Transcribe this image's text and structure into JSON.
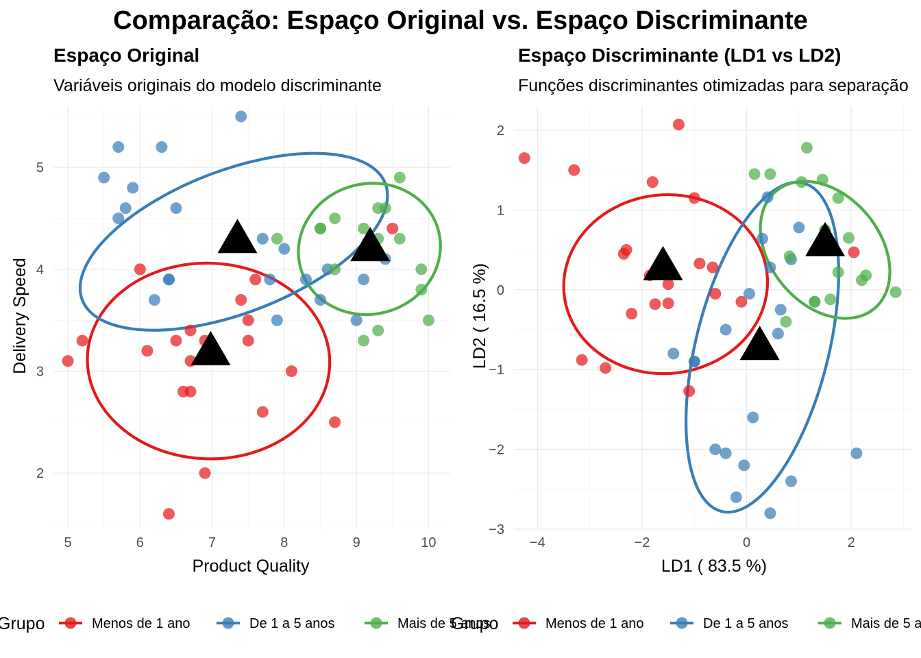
{
  "title": "Comparação: Espaço Original vs. Espaço Discriminante",
  "colors": {
    "Menos de 1 ano": "#E41A1C",
    "De 1 a 5 anos": "#377EB8",
    "Mais de 5 anos": "#4DAF4A",
    "centroid": "#000000"
  },
  "legend": {
    "title": "Grupo",
    "items": [
      "Menos de 1 ano",
      "De 1 a 5 anos",
      "Mais de 5 anos"
    ]
  },
  "chart_data": [
    {
      "type": "scatter",
      "title": "Espaço Original",
      "subtitle": "Variáveis originais do modelo discriminante",
      "xlabel": "Product Quality",
      "ylabel": "Delivery Speed",
      "xlim": [
        4.8,
        10.3
      ],
      "ylim": [
        1.45,
        5.6
      ],
      "xticks": [
        5,
        6,
        7,
        8,
        9,
        10
      ],
      "yticks": [
        2,
        3,
        4,
        5
      ],
      "grid": true,
      "legend_position": "bottom",
      "series": [
        {
          "name": "Menos de 1 ano",
          "points": [
            [
              5.0,
              3.1
            ],
            [
              5.2,
              3.3
            ],
            [
              6.0,
              4.0
            ],
            [
              6.1,
              3.2
            ],
            [
              6.4,
              1.6
            ],
            [
              6.5,
              3.3
            ],
            [
              6.6,
              2.8
            ],
            [
              6.7,
              2.8
            ],
            [
              6.7,
              3.1
            ],
            [
              6.7,
              3.4
            ],
            [
              6.9,
              3.3
            ],
            [
              6.9,
              2.0
            ],
            [
              7.4,
              3.7
            ],
            [
              7.5,
              3.5
            ],
            [
              7.5,
              3.3
            ],
            [
              7.6,
              3.9
            ],
            [
              7.7,
              2.6
            ],
            [
              8.1,
              3.0
            ],
            [
              8.7,
              2.5
            ],
            [
              9.5,
              4.4
            ]
          ],
          "ellipse": {
            "cx": 6.95,
            "cy": 3.1,
            "rx": 1.68,
            "ry": 0.96,
            "angle_deg": 2
          }
        },
        {
          "name": "De 1 a 5 anos",
          "points": [
            [
              5.5,
              4.9
            ],
            [
              5.7,
              5.2
            ],
            [
              5.7,
              4.5
            ],
            [
              5.8,
              4.6
            ],
            [
              5.9,
              4.8
            ],
            [
              6.2,
              3.7
            ],
            [
              6.3,
              5.2
            ],
            [
              6.4,
              3.9
            ],
            [
              6.4,
              3.9
            ],
            [
              6.5,
              4.6
            ],
            [
              7.4,
              5.5
            ],
            [
              7.7,
              4.3
            ],
            [
              7.8,
              3.9
            ],
            [
              7.9,
              3.5
            ],
            [
              8.0,
              4.2
            ],
            [
              8.3,
              3.9
            ],
            [
              8.5,
              3.7
            ],
            [
              8.6,
              4.0
            ],
            [
              9.0,
              3.5
            ],
            [
              9.1,
              3.9
            ],
            [
              9.4,
              4.1
            ]
          ],
          "ellipse": {
            "cx": 7.3,
            "cy": 4.27,
            "rx": 2.25,
            "ry": 0.7,
            "angle_deg": -21
          }
        },
        {
          "name": "Mais de 5 anos",
          "points": [
            [
              7.9,
              4.3
            ],
            [
              8.5,
              4.4
            ],
            [
              8.5,
              4.4
            ],
            [
              8.7,
              4.5
            ],
            [
              8.7,
              4.0
            ],
            [
              9.1,
              4.4
            ],
            [
              9.1,
              3.3
            ],
            [
              9.3,
              3.4
            ],
            [
              9.3,
              4.3
            ],
            [
              9.3,
              4.6
            ],
            [
              9.4,
              4.6
            ],
            [
              9.6,
              4.3
            ],
            [
              9.6,
              4.9
            ],
            [
              9.9,
              4.0
            ],
            [
              9.9,
              3.8
            ],
            [
              10.0,
              3.5
            ]
          ],
          "ellipse": {
            "cx": 9.18,
            "cy": 4.2,
            "rx": 0.99,
            "ry": 0.64,
            "angle_deg": -15
          }
        }
      ],
      "centroids": [
        {
          "group": "Menos de 1 ano",
          "x": 6.98,
          "y": 3.2
        },
        {
          "group": "De 1 a 5 anos",
          "x": 7.35,
          "y": 4.3
        },
        {
          "group": "Mais de 5 anos",
          "x": 9.19,
          "y": 4.22
        }
      ]
    },
    {
      "type": "scatter",
      "title": "Espaço Discriminante (LD1 vs LD2)",
      "subtitle": "Funções discriminantes otimizadas para separação",
      "xlabel": "LD1 ( 83.5 %)",
      "ylabel": "LD2 ( 16.5 %)",
      "xlim": [
        -4.45,
        3.15
      ],
      "ylim": [
        -3.0,
        2.3
      ],
      "xticks": [
        -4,
        -2,
        0,
        2
      ],
      "yticks": [
        -3,
        -2,
        -1,
        0,
        1,
        2
      ],
      "grid": true,
      "legend_position": "bottom",
      "series": [
        {
          "name": "Menos de 1 ano",
          "points": [
            [
              -4.25,
              1.65
            ],
            [
              -3.3,
              1.5
            ],
            [
              -3.15,
              -0.88
            ],
            [
              -2.7,
              -0.98
            ],
            [
              -2.35,
              0.45
            ],
            [
              -2.3,
              0.5
            ],
            [
              -2.2,
              -0.3
            ],
            [
              -1.85,
              0.18
            ],
            [
              -1.8,
              1.35
            ],
            [
              -1.75,
              -0.18
            ],
            [
              -1.5,
              0.07
            ],
            [
              -1.5,
              -0.17
            ],
            [
              -1.3,
              2.07
            ],
            [
              -1.1,
              -1.27
            ],
            [
              -1.0,
              1.15
            ],
            [
              -0.9,
              0.33
            ],
            [
              -0.65,
              0.28
            ],
            [
              -0.6,
              -0.05
            ],
            [
              -0.1,
              -0.15
            ],
            [
              2.05,
              0.47
            ]
          ],
          "ellipse": {
            "cx": -1.55,
            "cy": 0.07,
            "rx": 1.95,
            "ry": 1.12,
            "angle_deg": -5
          }
        },
        {
          "name": "De 1 a 5 anos",
          "points": [
            [
              -1.4,
              -0.8
            ],
            [
              -1.0,
              -0.9
            ],
            [
              -1.0,
              -0.9
            ],
            [
              -0.6,
              -2.0
            ],
            [
              -0.4,
              -0.5
            ],
            [
              -0.4,
              -2.05
            ],
            [
              -0.2,
              -2.6
            ],
            [
              -0.05,
              -2.2
            ],
            [
              0.05,
              -0.05
            ],
            [
              0.12,
              -1.6
            ],
            [
              0.3,
              0.64
            ],
            [
              0.4,
              1.16
            ],
            [
              0.45,
              0.28
            ],
            [
              0.45,
              -2.8
            ],
            [
              0.6,
              -0.55
            ],
            [
              0.65,
              -0.25
            ],
            [
              0.85,
              -2.4
            ],
            [
              0.85,
              0.38
            ],
            [
              1.0,
              0.78
            ],
            [
              1.5,
              0.74
            ],
            [
              2.1,
              -2.05
            ]
          ],
          "ellipse": {
            "cx": 0.3,
            "cy": -0.72,
            "rx": 1.27,
            "ry": 2.12,
            "angle_deg": 14
          }
        },
        {
          "name": "Mais de 5 anos",
          "points": [
            [
              0.15,
              1.45
            ],
            [
              0.45,
              1.45
            ],
            [
              0.75,
              -0.4
            ],
            [
              0.82,
              0.42
            ],
            [
              1.05,
              1.35
            ],
            [
              1.15,
              1.78
            ],
            [
              1.3,
              -0.15
            ],
            [
              1.3,
              -0.15
            ],
            [
              1.5,
              0.75
            ],
            [
              1.5,
              0.55
            ],
            [
              1.6,
              -0.12
            ],
            [
              1.75,
              0.22
            ],
            [
              1.75,
              1.15
            ],
            [
              1.95,
              0.65
            ],
            [
              2.2,
              0.12
            ],
            [
              2.28,
              0.18
            ],
            [
              2.85,
              -0.03
            ],
            [
              1.45,
              1.38
            ]
          ],
          "ellipse": {
            "cx": 1.5,
            "cy": 0.5,
            "rx": 1.05,
            "ry": 0.96,
            "angle_deg": -40
          }
        }
      ],
      "centroids": [
        {
          "group": "Menos de 1 ano",
          "x": -1.6,
          "y": 0.3
        },
        {
          "group": "De 1 a 5 anos",
          "x": 0.25,
          "y": -0.7
        },
        {
          "group": "Mais de 5 anos",
          "x": 1.5,
          "y": 0.6
        }
      ]
    }
  ]
}
